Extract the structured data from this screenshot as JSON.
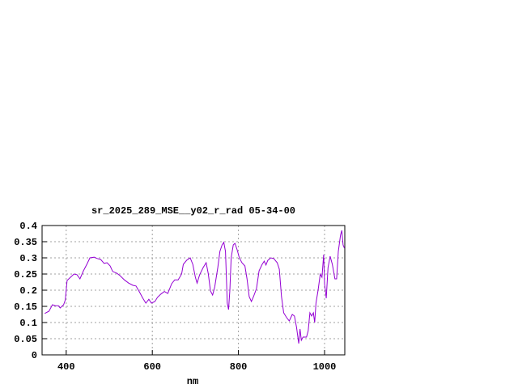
{
  "chart_data": {
    "type": "line",
    "title": "sr_2025_289_MSE__y02_r_rad 05-34-00",
    "x_label": "nm",
    "xlim": [
      344,
      1047
    ],
    "xticks": [
      400,
      600,
      800,
      1000
    ],
    "ylim": [
      0,
      0.4
    ],
    "yticks": [
      0,
      0.05,
      0.1,
      0.15,
      0.2,
      0.25,
      0.3,
      0.35,
      0.4
    ],
    "grid": true,
    "series": [
      {
        "color": "#9400d3",
        "x": [
          350,
          360,
          368,
          375,
          382,
          386,
          394,
          398,
          402,
          410,
          418,
          425,
          432,
          440,
          448,
          455,
          465,
          472,
          480,
          488,
          495,
          502,
          508,
          518,
          525,
          535,
          545,
          555,
          562,
          570,
          578,
          585,
          592,
          598,
          606,
          612,
          620,
          628,
          636,
          645,
          652,
          660,
          668,
          672,
          680,
          688,
          694,
          700,
          704,
          710,
          718,
          725,
          730,
          735,
          740,
          745,
          752,
          757,
          762,
          766,
          770,
          774,
          777,
          780,
          783,
          788,
          792,
          797,
          802,
          808,
          815,
          820,
          825,
          830,
          835,
          842,
          848,
          855,
          860,
          864,
          868,
          875,
          882,
          890,
          895,
          900,
          905,
          912,
          918,
          925,
          930,
          935,
          940,
          943,
          946,
          950,
          958,
          962,
          966,
          970,
          974,
          977,
          980,
          985,
          990,
          994,
          998,
          1000,
          1004,
          1008,
          1013,
          1018,
          1024,
          1028,
          1032,
          1037,
          1040,
          1043,
          1046
        ],
        "values": [
          0.128,
          0.135,
          0.155,
          0.152,
          0.152,
          0.145,
          0.155,
          0.17,
          0.23,
          0.24,
          0.25,
          0.248,
          0.235,
          0.26,
          0.28,
          0.3,
          0.302,
          0.298,
          0.295,
          0.283,
          0.285,
          0.275,
          0.258,
          0.252,
          0.245,
          0.232,
          0.222,
          0.215,
          0.213,
          0.195,
          0.175,
          0.16,
          0.172,
          0.16,
          0.165,
          0.178,
          0.188,
          0.196,
          0.19,
          0.22,
          0.232,
          0.232,
          0.25,
          0.28,
          0.293,
          0.3,
          0.28,
          0.24,
          0.222,
          0.248,
          0.27,
          0.285,
          0.25,
          0.198,
          0.185,
          0.21,
          0.27,
          0.32,
          0.34,
          0.348,
          0.32,
          0.16,
          0.14,
          0.2,
          0.3,
          0.34,
          0.345,
          0.325,
          0.3,
          0.285,
          0.275,
          0.235,
          0.18,
          0.165,
          0.18,
          0.205,
          0.26,
          0.28,
          0.29,
          0.278,
          0.292,
          0.3,
          0.298,
          0.285,
          0.265,
          0.18,
          0.13,
          0.115,
          0.105,
          0.125,
          0.12,
          0.085,
          0.035,
          0.08,
          0.045,
          0.055,
          0.055,
          0.075,
          0.13,
          0.12,
          0.13,
          0.1,
          0.16,
          0.2,
          0.25,
          0.24,
          0.31,
          0.22,
          0.175,
          0.27,
          0.305,
          0.28,
          0.235,
          0.235,
          0.32,
          0.37,
          0.385,
          0.34,
          0.33
        ]
      }
    ]
  }
}
